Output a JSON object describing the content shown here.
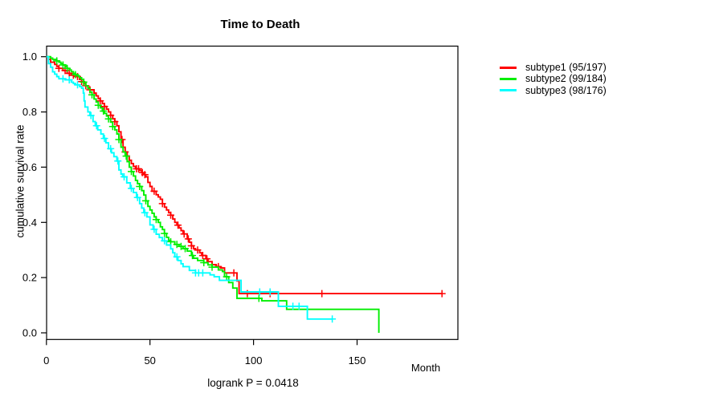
{
  "chart_data": {
    "type": "line",
    "subtype": "kaplan-meier-step",
    "title": "Time to Death",
    "ylabel": "cumulative survival rate",
    "xlabel": "Month",
    "annotation": "logrank P = 0.0418",
    "x_ticks": [
      0,
      50,
      100,
      150
    ],
    "y_ticks": [
      "1.0",
      "0.8",
      "0.6",
      "0.4",
      "0.2",
      "0.0"
    ],
    "xlim": [
      0,
      198
    ],
    "ylim": [
      0,
      1.04
    ],
    "grid": false,
    "legend_position": "right-outside",
    "axis_color": "#000000",
    "series": [
      {
        "name": "subtype1 (95/197)",
        "color": "#FF0000",
        "steps": [
          [
            0,
            1.0
          ],
          [
            1,
            0.99
          ],
          [
            2,
            0.98
          ],
          [
            4,
            0.972
          ],
          [
            5,
            0.965
          ],
          [
            6,
            0.958
          ],
          [
            8,
            0.95
          ],
          [
            10,
            0.94
          ],
          [
            12,
            0.933
          ],
          [
            14,
            0.928
          ],
          [
            16,
            0.918
          ],
          [
            17,
            0.91
          ],
          [
            18,
            0.902
          ],
          [
            19,
            0.895
          ],
          [
            20,
            0.888
          ],
          [
            21,
            0.88
          ],
          [
            23,
            0.868
          ],
          [
            24,
            0.858
          ],
          [
            25,
            0.848
          ],
          [
            26,
            0.84
          ],
          [
            27,
            0.83
          ],
          [
            28,
            0.82
          ],
          [
            29,
            0.81
          ],
          [
            30,
            0.8
          ],
          [
            31,
            0.788
          ],
          [
            32,
            0.775
          ],
          [
            33,
            0.765
          ],
          [
            34,
            0.75
          ],
          [
            35,
            0.728
          ],
          [
            36,
            0.7
          ],
          [
            37,
            0.672
          ],
          [
            38,
            0.655
          ],
          [
            39,
            0.64
          ],
          [
            40,
            0.625
          ],
          [
            41,
            0.613
          ],
          [
            42,
            0.603
          ],
          [
            43,
            0.594
          ],
          [
            45,
            0.588
          ],
          [
            46,
            0.58
          ],
          [
            47,
            0.573
          ],
          [
            48,
            0.565
          ],
          [
            49,
            0.545
          ],
          [
            50,
            0.53
          ],
          [
            51,
            0.513
          ],
          [
            53,
            0.5
          ],
          [
            54,
            0.492
          ],
          [
            55,
            0.484
          ],
          [
            56,
            0.468
          ],
          [
            57,
            0.455
          ],
          [
            58,
            0.445
          ],
          [
            59,
            0.435
          ],
          [
            60,
            0.426
          ],
          [
            61,
            0.412
          ],
          [
            62,
            0.4
          ],
          [
            63,
            0.39
          ],
          [
            64,
            0.38
          ],
          [
            65,
            0.37
          ],
          [
            66,
            0.358
          ],
          [
            68,
            0.34
          ],
          [
            69,
            0.328
          ],
          [
            70,
            0.315
          ],
          [
            71,
            0.305
          ],
          [
            72,
            0.3
          ],
          [
            74,
            0.29
          ],
          [
            75,
            0.28
          ],
          [
            77,
            0.268
          ],
          [
            78,
            0.258
          ],
          [
            80,
            0.247
          ],
          [
            82,
            0.24
          ],
          [
            84,
            0.235
          ],
          [
            86,
            0.217
          ],
          [
            92,
            0.188
          ],
          [
            93,
            0.142
          ],
          [
            191,
            0.142
          ]
        ],
        "censors": [
          [
            6,
            0.958
          ],
          [
            9,
            0.95
          ],
          [
            11,
            0.94
          ],
          [
            13,
            0.933
          ],
          [
            15,
            0.928
          ],
          [
            17,
            0.91
          ],
          [
            19,
            0.895
          ],
          [
            21,
            0.88
          ],
          [
            26,
            0.84
          ],
          [
            28,
            0.82
          ],
          [
            31,
            0.788
          ],
          [
            33,
            0.765
          ],
          [
            36.5,
            0.7
          ],
          [
            38,
            0.655
          ],
          [
            43.5,
            0.594
          ],
          [
            44.5,
            0.594
          ],
          [
            46.3,
            0.58
          ],
          [
            47.5,
            0.573
          ],
          [
            52,
            0.513
          ],
          [
            56,
            0.468
          ],
          [
            60,
            0.426
          ],
          [
            63.5,
            0.39
          ],
          [
            66.5,
            0.358
          ],
          [
            68.5,
            0.34
          ],
          [
            70,
            0.315
          ],
          [
            73,
            0.3
          ],
          [
            75.5,
            0.28
          ],
          [
            77.5,
            0.268
          ],
          [
            83,
            0.24
          ],
          [
            90.5,
            0.217
          ],
          [
            97,
            0.142
          ],
          [
            108,
            0.142
          ],
          [
            133,
            0.142
          ],
          [
            191,
            0.142
          ]
        ]
      },
      {
        "name": "subtype2 (99/184)",
        "color": "#00EE00",
        "steps": [
          [
            0,
            1.0
          ],
          [
            2,
            0.995
          ],
          [
            3,
            0.99
          ],
          [
            5,
            0.985
          ],
          [
            6,
            0.98
          ],
          [
            7,
            0.975
          ],
          [
            8,
            0.97
          ],
          [
            9,
            0.965
          ],
          [
            10,
            0.958
          ],
          [
            11,
            0.952
          ],
          [
            12,
            0.946
          ],
          [
            13,
            0.94
          ],
          [
            14,
            0.935
          ],
          [
            15,
            0.93
          ],
          [
            16,
            0.924
          ],
          [
            17,
            0.918
          ],
          [
            18,
            0.908
          ],
          [
            19,
            0.895
          ],
          [
            20,
            0.885
          ],
          [
            21,
            0.872
          ],
          [
            22,
            0.862
          ],
          [
            23,
            0.847
          ],
          [
            24,
            0.836
          ],
          [
            25,
            0.824
          ],
          [
            26,
            0.815
          ],
          [
            27,
            0.803
          ],
          [
            28,
            0.795
          ],
          [
            29,
            0.785
          ],
          [
            30,
            0.775
          ],
          [
            31,
            0.763
          ],
          [
            32,
            0.747
          ],
          [
            33,
            0.735
          ],
          [
            34,
            0.72
          ],
          [
            35,
            0.7
          ],
          [
            36,
            0.672
          ],
          [
            37,
            0.655
          ],
          [
            38,
            0.64
          ],
          [
            39,
            0.62
          ],
          [
            40,
            0.6
          ],
          [
            41,
            0.584
          ],
          [
            42,
            0.568
          ],
          [
            43,
            0.552
          ],
          [
            44,
            0.54
          ],
          [
            45,
            0.53
          ],
          [
            46,
            0.515
          ],
          [
            47,
            0.499
          ],
          [
            48,
            0.478
          ],
          [
            49,
            0.458
          ],
          [
            50,
            0.445
          ],
          [
            51,
            0.433
          ],
          [
            52,
            0.42
          ],
          [
            53,
            0.41
          ],
          [
            54,
            0.4
          ],
          [
            55,
            0.384
          ],
          [
            56,
            0.374
          ],
          [
            57,
            0.36
          ],
          [
            58,
            0.346
          ],
          [
            59,
            0.335
          ],
          [
            60,
            0.33
          ],
          [
            62,
            0.32
          ],
          [
            64,
            0.313
          ],
          [
            66,
            0.305
          ],
          [
            68,
            0.296
          ],
          [
            70,
            0.28
          ],
          [
            71,
            0.27
          ],
          [
            73,
            0.262
          ],
          [
            76,
            0.254
          ],
          [
            78,
            0.246
          ],
          [
            80,
            0.238
          ],
          [
            83,
            0.228
          ],
          [
            85,
            0.222
          ],
          [
            86,
            0.203
          ],
          [
            88,
            0.182
          ],
          [
            90,
            0.162
          ],
          [
            92,
            0.125
          ],
          [
            104,
            0.116
          ],
          [
            116,
            0.085
          ],
          [
            160.5,
            0.0
          ]
        ],
        "censors": [
          [
            5,
            0.985
          ],
          [
            8,
            0.97
          ],
          [
            10,
            0.958
          ],
          [
            14,
            0.935
          ],
          [
            18,
            0.908
          ],
          [
            22,
            0.862
          ],
          [
            25,
            0.824
          ],
          [
            27.5,
            0.803
          ],
          [
            30,
            0.775
          ],
          [
            32,
            0.747
          ],
          [
            35,
            0.7
          ],
          [
            38.5,
            0.64
          ],
          [
            41,
            0.584
          ],
          [
            45,
            0.53
          ],
          [
            48,
            0.478
          ],
          [
            53,
            0.41
          ],
          [
            57,
            0.36
          ],
          [
            60,
            0.33
          ],
          [
            63,
            0.32
          ],
          [
            65,
            0.313
          ],
          [
            67,
            0.305
          ],
          [
            70.5,
            0.28
          ],
          [
            76,
            0.254
          ],
          [
            80,
            0.238
          ],
          [
            87,
            0.203
          ],
          [
            102.6,
            0.125
          ]
        ]
      },
      {
        "name": "subtype3 (98/176)",
        "color": "#00FFFF",
        "steps": [
          [
            0,
            1.0
          ],
          [
            1,
            0.975
          ],
          [
            2,
            0.962
          ],
          [
            3,
            0.945
          ],
          [
            4,
            0.937
          ],
          [
            5,
            0.928
          ],
          [
            6,
            0.92
          ],
          [
            9,
            0.916
          ],
          [
            12,
            0.908
          ],
          [
            13,
            0.903
          ],
          [
            14,
            0.898
          ],
          [
            16,
            0.892
          ],
          [
            17,
            0.886
          ],
          [
            17.8,
            0.868
          ],
          [
            18.2,
            0.84
          ],
          [
            18.6,
            0.818
          ],
          [
            20,
            0.8
          ],
          [
            21,
            0.787
          ],
          [
            22.5,
            0.765
          ],
          [
            23.6,
            0.75
          ],
          [
            24.8,
            0.735
          ],
          [
            26.3,
            0.72
          ],
          [
            27.5,
            0.704
          ],
          [
            28.7,
            0.688
          ],
          [
            30,
            0.667
          ],
          [
            31.4,
            0.652
          ],
          [
            32.6,
            0.638
          ],
          [
            34,
            0.622
          ],
          [
            35,
            0.59
          ],
          [
            36,
            0.575
          ],
          [
            36.8,
            0.565
          ],
          [
            38.8,
            0.543
          ],
          [
            40.5,
            0.523
          ],
          [
            42,
            0.508
          ],
          [
            43.5,
            0.49
          ],
          [
            45,
            0.468
          ],
          [
            46,
            0.452
          ],
          [
            47,
            0.435
          ],
          [
            48.5,
            0.42
          ],
          [
            50,
            0.391
          ],
          [
            51.5,
            0.375
          ],
          [
            53,
            0.357
          ],
          [
            54.5,
            0.345
          ],
          [
            56,
            0.333
          ],
          [
            58,
            0.318
          ],
          [
            60,
            0.304
          ],
          [
            61,
            0.29
          ],
          [
            62,
            0.275
          ],
          [
            63.5,
            0.262
          ],
          [
            65,
            0.25
          ],
          [
            66,
            0.24
          ],
          [
            69,
            0.226
          ],
          [
            72,
            0.217
          ],
          [
            79,
            0.21
          ],
          [
            81,
            0.203
          ],
          [
            83.5,
            0.19
          ],
          [
            94,
            0.148
          ],
          [
            112,
            0.096
          ],
          [
            126,
            0.05
          ],
          [
            138,
            0.05
          ]
        ],
        "censors": [
          [
            8,
            0.92
          ],
          [
            11,
            0.916
          ],
          [
            15,
            0.898
          ],
          [
            21.5,
            0.787
          ],
          [
            24.2,
            0.75
          ],
          [
            28,
            0.704
          ],
          [
            31,
            0.667
          ],
          [
            34.5,
            0.622
          ],
          [
            37.5,
            0.565
          ],
          [
            41,
            0.523
          ],
          [
            44,
            0.49
          ],
          [
            47.5,
            0.435
          ],
          [
            52,
            0.375
          ],
          [
            57,
            0.333
          ],
          [
            63,
            0.275
          ],
          [
            72,
            0.217
          ],
          [
            73.5,
            0.217
          ],
          [
            75.5,
            0.217
          ],
          [
            103,
            0.148
          ],
          [
            108,
            0.148
          ],
          [
            119,
            0.096
          ],
          [
            122,
            0.096
          ],
          [
            138,
            0.05
          ]
        ]
      }
    ]
  }
}
